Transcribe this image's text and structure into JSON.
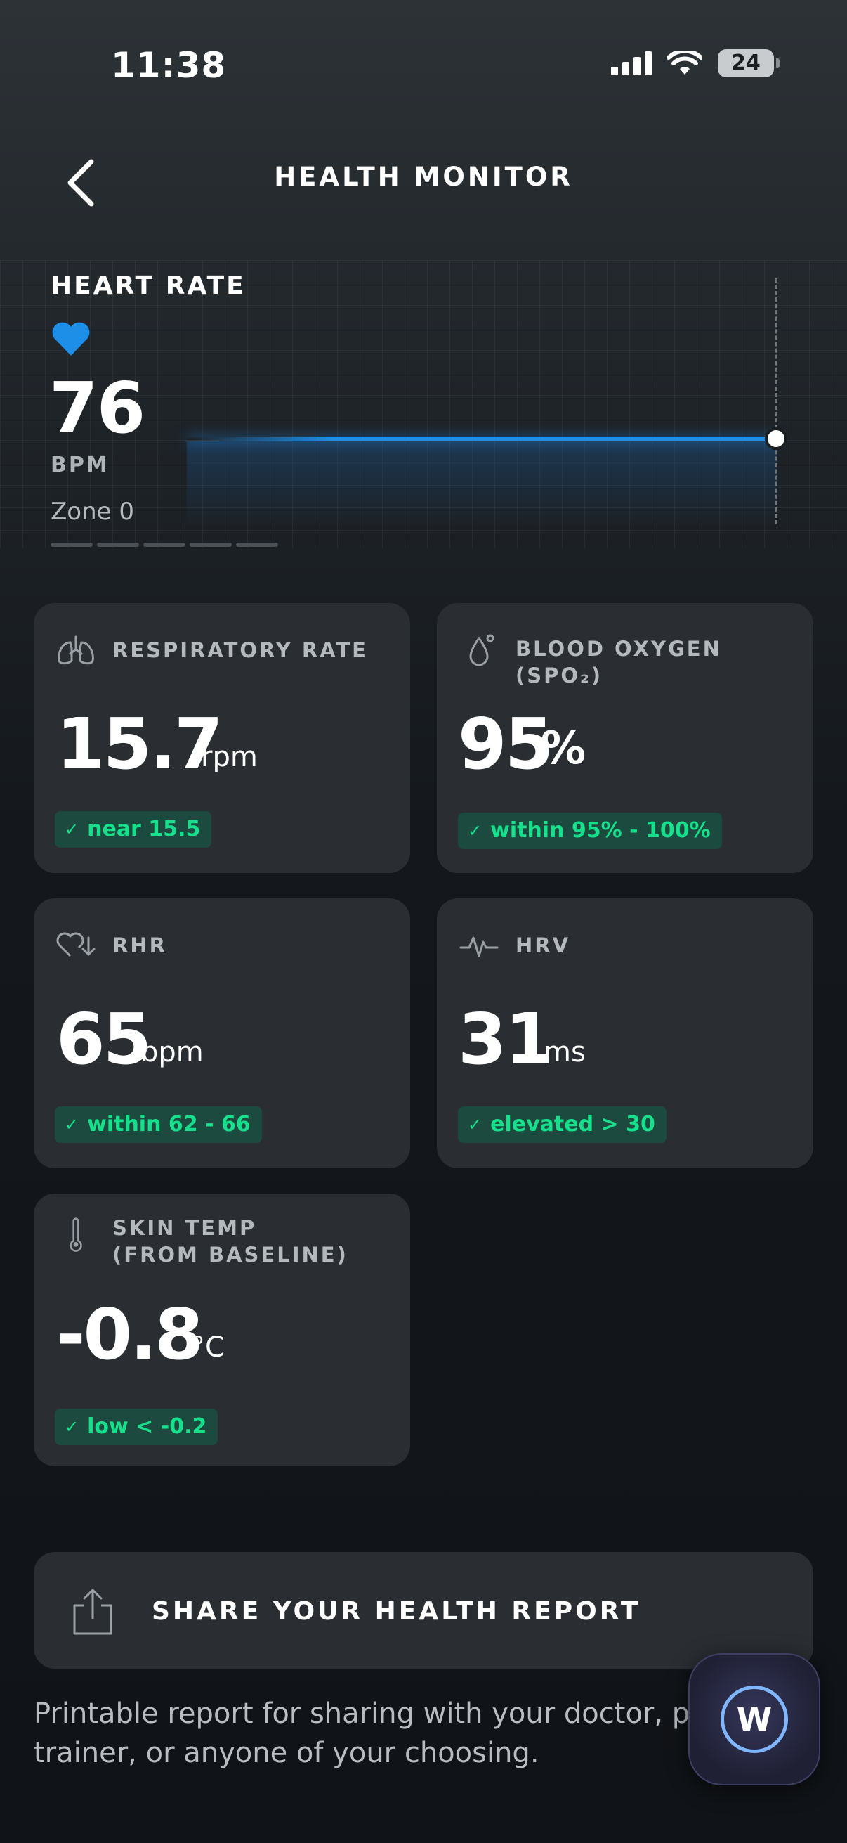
{
  "status_bar": {
    "time": "11:38",
    "battery": "24"
  },
  "header": {
    "title": "HEALTH MONITOR"
  },
  "heart_rate": {
    "label": "HEART RATE",
    "value": "76",
    "unit": "BPM",
    "zone": "Zone 0",
    "accent": "#1d8fe8"
  },
  "cards": {
    "respiratory": {
      "label": "RESPIRATORY RATE",
      "value": "15.7",
      "unit": "rpm",
      "status": "near 15.5"
    },
    "spo2": {
      "label": "BLOOD OXYGEN (SPO₂)",
      "value": "95",
      "unit": "%",
      "status": "within 95% - 100%"
    },
    "rhr": {
      "label": "RHR",
      "value": "65",
      "unit": "bpm",
      "status": "within 62 - 66"
    },
    "hrv": {
      "label": "HRV",
      "value": "31",
      "unit": "ms",
      "status": "elevated > 30"
    },
    "skin_temp": {
      "label_line1": "SKIN TEMP",
      "label_line2": "(FROM BASELINE)",
      "value": "-0.8",
      "unit": "°C",
      "status": "low < -0.2"
    }
  },
  "share": {
    "label": "SHARE YOUR HEALTH REPORT",
    "description": "Printable report for sharing with your doctor, physical trainer, or anyone of your choosing."
  },
  "status_color": "#17e08c",
  "fab": {
    "icon": "whoop-coach-icon",
    "glyph": "W"
  }
}
